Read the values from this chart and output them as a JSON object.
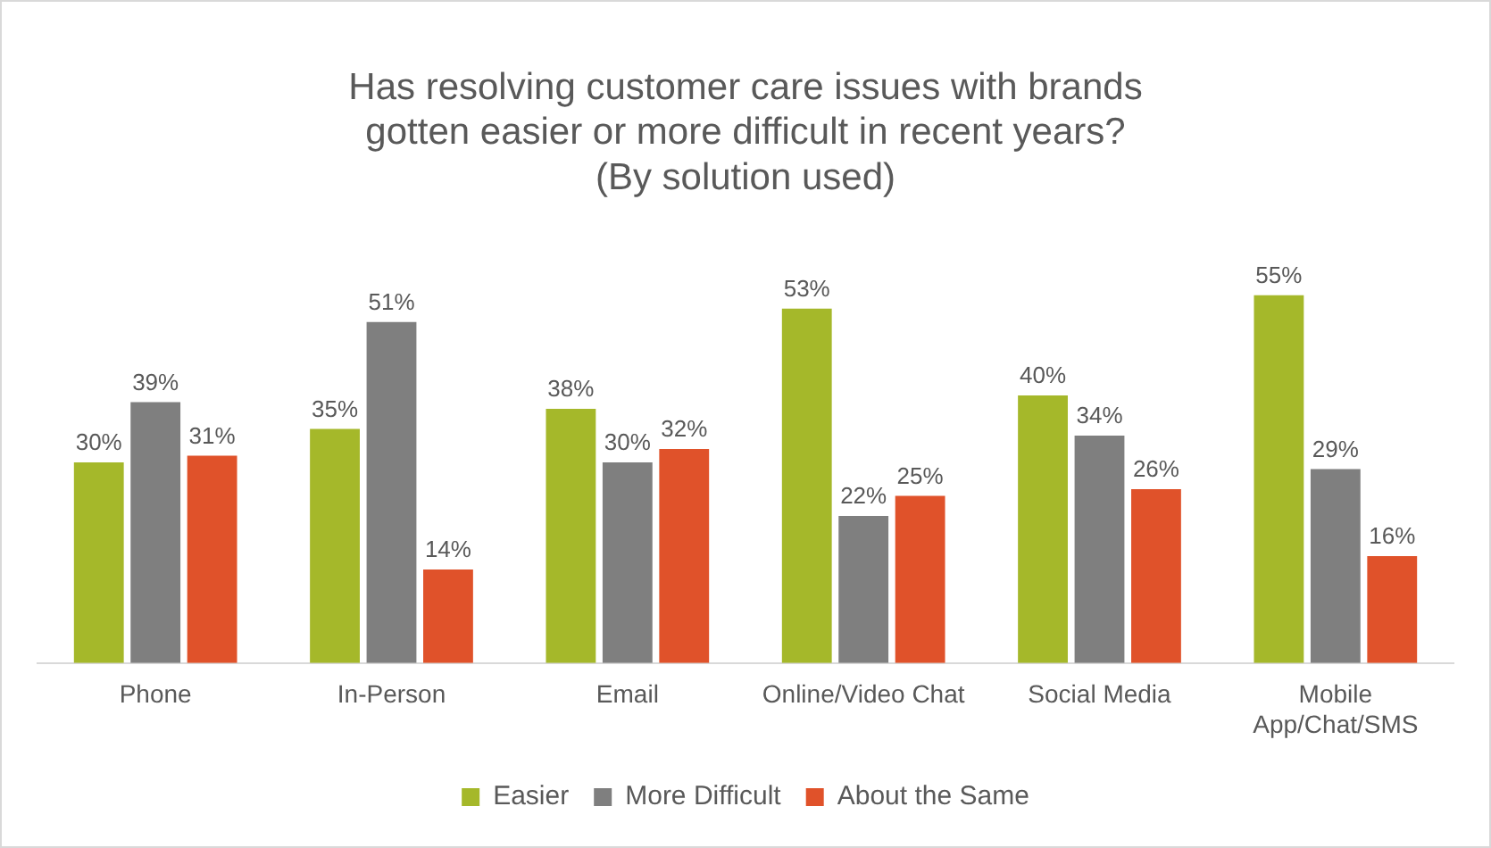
{
  "chart_data": {
    "type": "bar",
    "title": "Has resolving customer care issues with brands\ngotten easier or more difficult in recent years?\n(By solution used)",
    "categories": [
      "Phone",
      "In-Person",
      "Email",
      "Online/Video Chat",
      "Social Media",
      "Mobile App/Chat/SMS"
    ],
    "series": [
      {
        "name": "Easier",
        "color": "#a5b82a",
        "values": [
          30,
          35,
          38,
          53,
          40,
          55
        ],
        "value_labels": [
          "30%",
          "35%",
          "38%",
          "53%",
          "40%",
          "55%"
        ]
      },
      {
        "name": "More Difficult",
        "color": "#7f7f7f",
        "values": [
          39,
          51,
          30,
          22,
          34,
          29
        ],
        "value_labels": [
          "39%",
          "51%",
          "30%",
          "22%",
          "34%",
          "29%"
        ]
      },
      {
        "name": "About the Same",
        "color": "#e0522a",
        "values": [
          31,
          14,
          32,
          25,
          26,
          16
        ],
        "value_labels": [
          "31%",
          "14%",
          "32%",
          "25%",
          "26%",
          "16%"
        ]
      }
    ],
    "legend": "bottom"
  }
}
